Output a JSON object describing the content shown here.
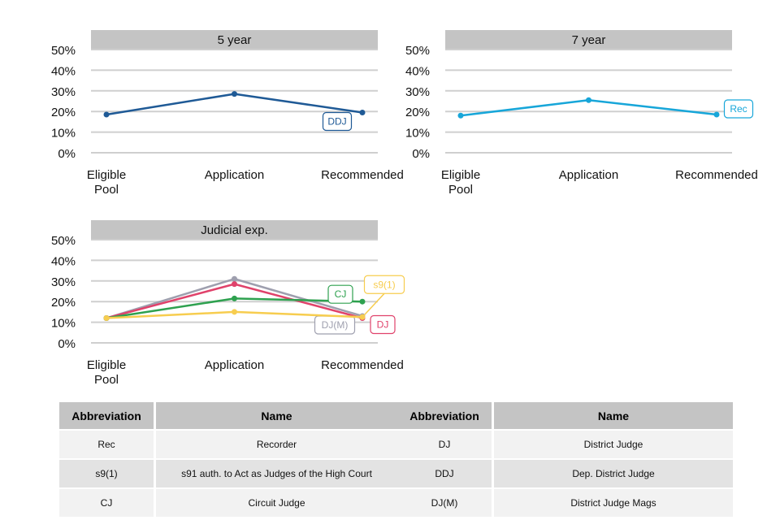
{
  "chart_data": [
    {
      "type": "line",
      "title": "5 year",
      "categories": [
        "Eligible\nPool",
        "Application",
        "Recommended"
      ],
      "ylim": [
        0,
        50
      ],
      "yticks": [
        "0%",
        "10%",
        "20%",
        "30%",
        "40%",
        "50%"
      ],
      "grid": true,
      "series": [
        {
          "name": "DDJ",
          "color": "#1f5a96",
          "values": [
            18.5,
            28.5,
            19.5
          ]
        }
      ]
    },
    {
      "type": "line",
      "title": "7 year",
      "categories": [
        "Eligible\nPool",
        "Application",
        "Recommended"
      ],
      "ylim": [
        0,
        50
      ],
      "yticks": [
        "0%",
        "10%",
        "20%",
        "30%",
        "40%",
        "50%"
      ],
      "grid": true,
      "series": [
        {
          "name": "Rec",
          "color": "#17a6d9",
          "values": [
            18,
            25.5,
            18.5
          ]
        }
      ]
    },
    {
      "type": "line",
      "title": "Judicial exp.",
      "categories": [
        "Eligible\nPool",
        "Application",
        "Recommended"
      ],
      "ylim": [
        0,
        50
      ],
      "yticks": [
        "0%",
        "10%",
        "20%",
        "30%",
        "40%",
        "50%"
      ],
      "grid": true,
      "series": [
        {
          "name": "DJ(M)",
          "color": "#9e9fae",
          "values": [
            12,
            31,
            13
          ]
        },
        {
          "name": "DJ",
          "color": "#e0426b",
          "values": [
            12,
            28.5,
            12
          ]
        },
        {
          "name": "CJ",
          "color": "#2ea14f",
          "values": [
            12,
            21.5,
            20
          ]
        },
        {
          "name": "s9(1)",
          "color": "#f7cd4f",
          "values": [
            12,
            15,
            12.5
          ]
        }
      ]
    }
  ],
  "table": {
    "headers": {
      "abbr": "Abbreviation",
      "name": "Name"
    },
    "left": [
      {
        "abbr": "Rec",
        "name": "Recorder"
      },
      {
        "abbr": "s9(1)",
        "name": "s91 auth. to Act as Judges of the High Court"
      },
      {
        "abbr": "CJ",
        "name": "Circuit Judge"
      }
    ],
    "right": [
      {
        "abbr": "DJ",
        "name": "District Judge"
      },
      {
        "abbr": "DDJ",
        "name": "Dep. District Judge"
      },
      {
        "abbr": "DJ(M)",
        "name": "District Judge Mags"
      }
    ]
  }
}
